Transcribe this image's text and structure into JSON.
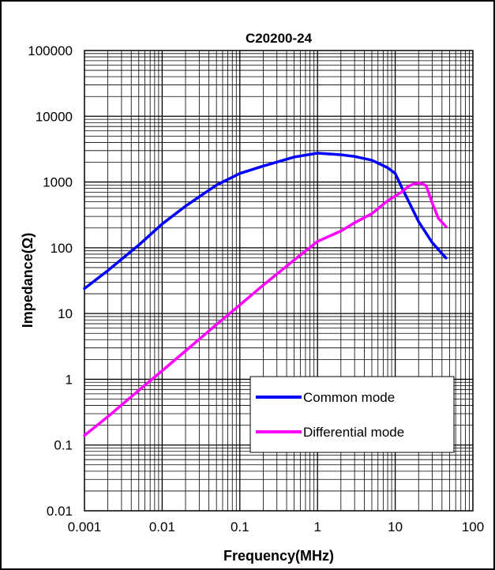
{
  "chart_data": {
    "type": "line",
    "title": "C20200-24",
    "xlabel": "Frequency(MHz)",
    "ylabel": "Impedance(Ω)",
    "xscale": "log",
    "yscale": "log",
    "xlim": [
      0.001,
      100
    ],
    "ylim": [
      0.01,
      100000
    ],
    "x_ticks": [
      "0.001",
      "0.01",
      "0.1",
      "1",
      "10",
      "100"
    ],
    "y_ticks": [
      "0.01",
      "0.1",
      "1",
      "10",
      "100",
      "1000",
      "10000",
      "100000"
    ],
    "grid": true,
    "legend_position": "bottom-right",
    "series": [
      {
        "name": "Common mode",
        "color": "#0000ff",
        "points": [
          [
            0.001,
            24
          ],
          [
            0.002,
            45
          ],
          [
            0.005,
            110
          ],
          [
            0.01,
            230
          ],
          [
            0.02,
            430
          ],
          [
            0.05,
            900
          ],
          [
            0.1,
            1350
          ],
          [
            0.2,
            1750
          ],
          [
            0.5,
            2400
          ],
          [
            1,
            2750
          ],
          [
            2,
            2600
          ],
          [
            3,
            2450
          ],
          [
            5,
            2150
          ],
          [
            8,
            1650
          ],
          [
            10,
            1350
          ],
          [
            12,
            850
          ],
          [
            15,
            500
          ],
          [
            20,
            250
          ],
          [
            30,
            120
          ],
          [
            45,
            70
          ]
        ]
      },
      {
        "name": "Differential mode",
        "color": "#ff00ff",
        "points": [
          [
            0.001,
            0.14
          ],
          [
            0.002,
            0.27
          ],
          [
            0.005,
            0.68
          ],
          [
            0.01,
            1.35
          ],
          [
            0.02,
            2.7
          ],
          [
            0.05,
            6.8
          ],
          [
            0.1,
            13.5
          ],
          [
            0.2,
            27
          ],
          [
            0.5,
            65
          ],
          [
            1,
            125
          ],
          [
            2,
            180
          ],
          [
            3,
            240
          ],
          [
            5,
            330
          ],
          [
            8,
            520
          ],
          [
            12,
            700
          ],
          [
            15,
            870
          ],
          [
            18,
            950
          ],
          [
            21,
            970
          ],
          [
            25,
            880
          ],
          [
            30,
            480
          ],
          [
            36,
            280
          ],
          [
            45,
            210
          ]
        ]
      }
    ]
  }
}
